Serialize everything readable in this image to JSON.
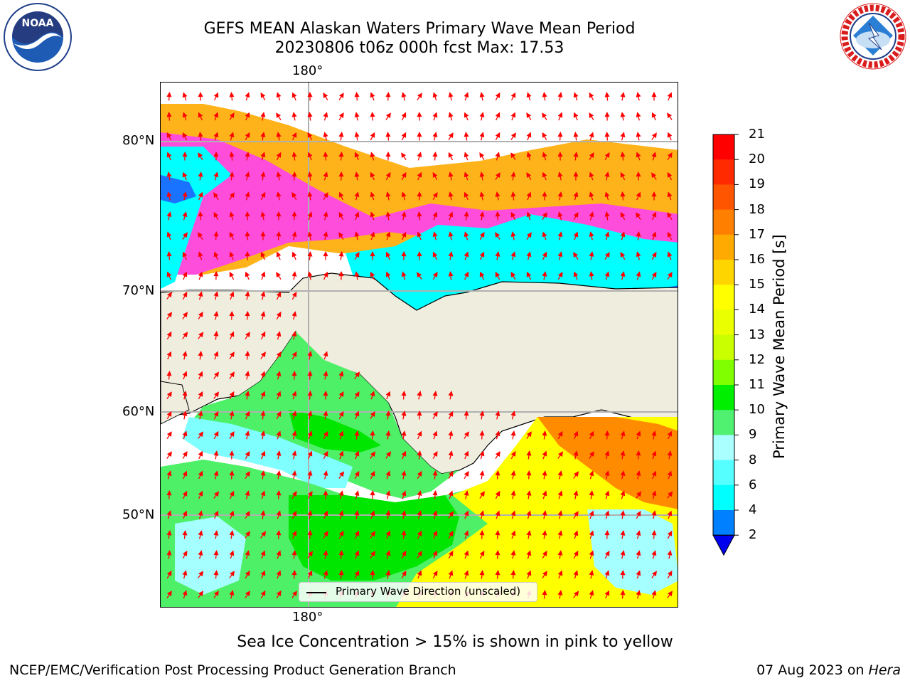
{
  "title_line1": "GEFS MEAN Alaskan Waters Primary Wave Mean Period",
  "title_line2": "20230806 t06z 000h fcst   Max: 17.53",
  "logos": {
    "left": "noaa-logo",
    "right": "national-weather-service-logo"
  },
  "map": {
    "lon_label_top": "180°",
    "lon_label_bottom": "180°",
    "lat_labels": [
      "80°N",
      "70°N",
      "60°N",
      "50°N"
    ],
    "legend_label": "Primary Wave Direction (unscaled)",
    "arrow_color": "#ff0000",
    "land_color": "#efedde"
  },
  "colorbar": {
    "label": "Primary Wave Mean Period [s]",
    "ticks": [
      "21",
      "20",
      "19",
      "18",
      "17",
      "16",
      "15",
      "14",
      "13",
      "12",
      "11",
      "10",
      "9",
      "8",
      "6",
      "4",
      "2"
    ],
    "colors_top_to_bottom": [
      "#ff0000",
      "#ff2a00",
      "#ff5500",
      "#ff8000",
      "#ffaa00",
      "#ffd500",
      "#ffff00",
      "#eaff00",
      "#caff00",
      "#80ff00",
      "#00ee00",
      "#50f070",
      "#aaffff",
      "#55ffff",
      "#00ffff",
      "#0080ff"
    ],
    "extend_color": "#0000ee"
  },
  "note": "Sea Ice Concentration > 15% is shown in pink to yellow",
  "footer_left": "NCEP/EMC/Verification Post Processing Product Generation Branch",
  "footer_date": "07 Aug 2023 on",
  "footer_machine": "Hera"
}
